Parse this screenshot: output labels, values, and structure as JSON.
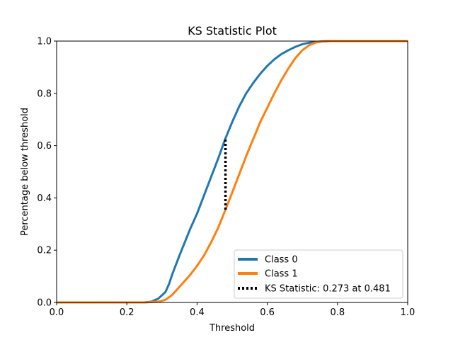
{
  "chart_data": {
    "type": "line",
    "title": "KS Statistic Plot",
    "xlabel": "Threshold",
    "ylabel": "Percentage below threshold",
    "xlim": [
      0.0,
      1.0
    ],
    "ylim": [
      0.0,
      1.0
    ],
    "xticks": [
      "0.0",
      "0.2",
      "0.4",
      "0.6",
      "0.8",
      "1.0"
    ],
    "yticks": [
      "0.0",
      "0.2",
      "0.4",
      "0.6",
      "0.8",
      "1.0"
    ],
    "grid": false,
    "legend_position": "lower-right",
    "series": [
      {
        "name": "Class 0",
        "color": "#1f77b4",
        "x": [
          0.0,
          0.25,
          0.27,
          0.29,
          0.31,
          0.32,
          0.33,
          0.35,
          0.38,
          0.4,
          0.42,
          0.44,
          0.46,
          0.481,
          0.5,
          0.52,
          0.54,
          0.56,
          0.58,
          0.6,
          0.62,
          0.64,
          0.66,
          0.68,
          0.7,
          0.72,
          0.74,
          0.76,
          0.78,
          0.8,
          1.0
        ],
        "values": [
          0.0,
          0.0,
          0.003,
          0.015,
          0.04,
          0.07,
          0.11,
          0.18,
          0.28,
          0.34,
          0.41,
          0.48,
          0.55,
          0.628,
          0.69,
          0.75,
          0.8,
          0.84,
          0.875,
          0.905,
          0.93,
          0.95,
          0.965,
          0.978,
          0.988,
          0.994,
          0.997,
          0.999,
          1.0,
          1.0,
          1.0
        ]
      },
      {
        "name": "Class 1",
        "color": "#ff7f0e",
        "x": [
          0.0,
          0.25,
          0.29,
          0.31,
          0.33,
          0.35,
          0.38,
          0.4,
          0.42,
          0.44,
          0.46,
          0.481,
          0.5,
          0.52,
          0.54,
          0.56,
          0.58,
          0.6,
          0.62,
          0.64,
          0.66,
          0.68,
          0.7,
          0.72,
          0.74,
          0.76,
          0.78,
          0.8,
          1.0
        ],
        "values": [
          0.0,
          0.0,
          0.003,
          0.01,
          0.03,
          0.06,
          0.105,
          0.14,
          0.18,
          0.23,
          0.285,
          0.355,
          0.42,
          0.49,
          0.56,
          0.625,
          0.69,
          0.745,
          0.8,
          0.85,
          0.895,
          0.935,
          0.965,
          0.985,
          0.995,
          0.999,
          1.0,
          1.0,
          1.0
        ]
      }
    ],
    "ks_line": {
      "name": "KS Statistic: 0.273 at 0.481",
      "x": 0.481,
      "y_low": 0.355,
      "y_high": 0.628,
      "color": "#000000"
    }
  }
}
